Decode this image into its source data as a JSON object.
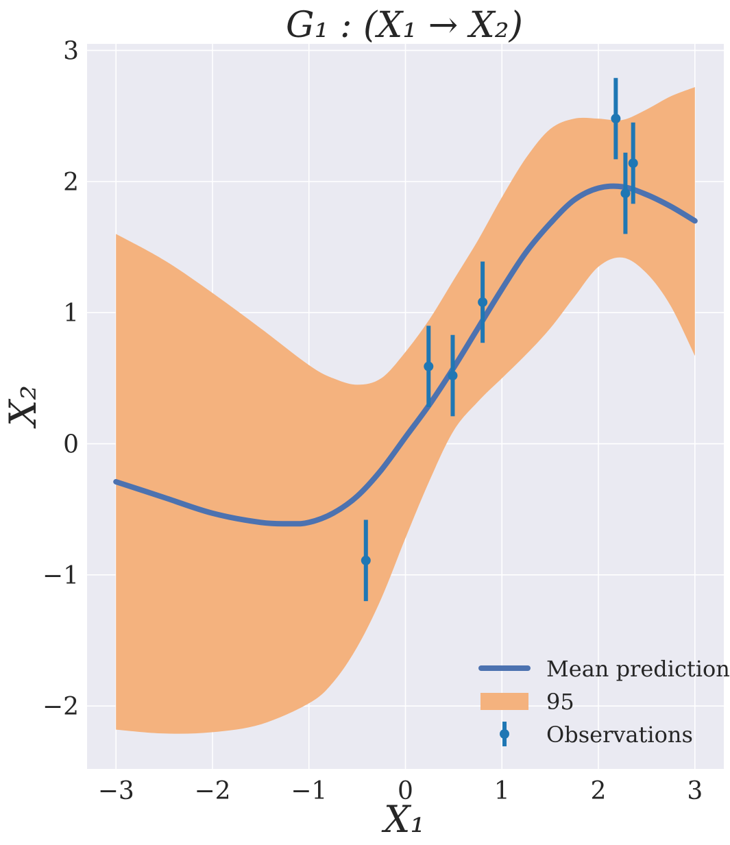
{
  "chart_data": {
    "type": "line",
    "title": "G₁ : (X₁ → X₂)",
    "xlabel": "X₁",
    "ylabel": "X₂",
    "xlim": [
      -3.3,
      3.3
    ],
    "ylim": [
      -2.48,
      3.05
    ],
    "grid": true,
    "legend_position": "lower-right",
    "x_ticks": [
      -3,
      -2,
      -1,
      0,
      1,
      2,
      3
    ],
    "x_tick_labels": [
      "−3",
      "−2",
      "−1",
      "0",
      "1",
      "2",
      "3"
    ],
    "y_ticks": [
      -2,
      -1,
      0,
      1,
      2,
      3
    ],
    "y_tick_labels": [
      "−2",
      "−1",
      "0",
      "1",
      "2",
      "3"
    ],
    "series": [
      {
        "name": "Mean prediction",
        "kind": "line",
        "color": "#4c72b0",
        "x": [
          -3.0,
          -2.5,
          -2.0,
          -1.5,
          -1.2,
          -1.0,
          -0.75,
          -0.5,
          -0.25,
          0.0,
          0.25,
          0.5,
          0.75,
          1.0,
          1.25,
          1.5,
          1.75,
          2.0,
          2.25,
          2.5,
          2.75,
          3.0
        ],
        "y": [
          -0.29,
          -0.41,
          -0.53,
          -0.6,
          -0.61,
          -0.6,
          -0.53,
          -0.4,
          -0.2,
          0.05,
          0.3,
          0.58,
          0.88,
          1.18,
          1.46,
          1.68,
          1.86,
          1.95,
          1.96,
          1.9,
          1.81,
          1.7
        ]
      },
      {
        "name": "95",
        "kind": "band",
        "color": "#f4b27e",
        "x": [
          -3.0,
          -2.5,
          -2.0,
          -1.5,
          -1.0,
          -0.75,
          -0.5,
          -0.25,
          0.0,
          0.25,
          0.5,
          0.75,
          1.0,
          1.25,
          1.5,
          1.75,
          2.0,
          2.25,
          2.5,
          2.75,
          3.0
        ],
        "upper": [
          1.6,
          1.4,
          1.15,
          0.88,
          0.6,
          0.5,
          0.45,
          0.5,
          0.7,
          0.95,
          1.25,
          1.55,
          1.88,
          2.18,
          2.4,
          2.48,
          2.48,
          2.47,
          2.55,
          2.65,
          2.72
        ],
        "lower": [
          -2.18,
          -2.21,
          -2.2,
          -2.14,
          -1.98,
          -1.82,
          -1.55,
          -1.18,
          -0.72,
          -0.28,
          0.1,
          0.32,
          0.5,
          0.68,
          0.88,
          1.12,
          1.35,
          1.42,
          1.3,
          1.05,
          0.67
        ]
      },
      {
        "name": "Observations",
        "kind": "errorbar",
        "color": "#1f77b4",
        "x": [
          -0.41,
          0.24,
          0.49,
          0.8,
          2.18,
          2.28,
          2.36
        ],
        "y": [
          -0.89,
          0.59,
          0.52,
          1.08,
          2.48,
          1.91,
          2.14
        ],
        "yerr": [
          0.31,
          0.31,
          0.31,
          0.31,
          0.31,
          0.31,
          0.31
        ]
      }
    ]
  },
  "legend": {
    "mean_label": "Mean prediction",
    "band_label": "95",
    "obs_label": "Observations"
  },
  "colors": {
    "plot_background": "#eaeaf2",
    "grid": "#ffffff",
    "text": "#262626"
  }
}
